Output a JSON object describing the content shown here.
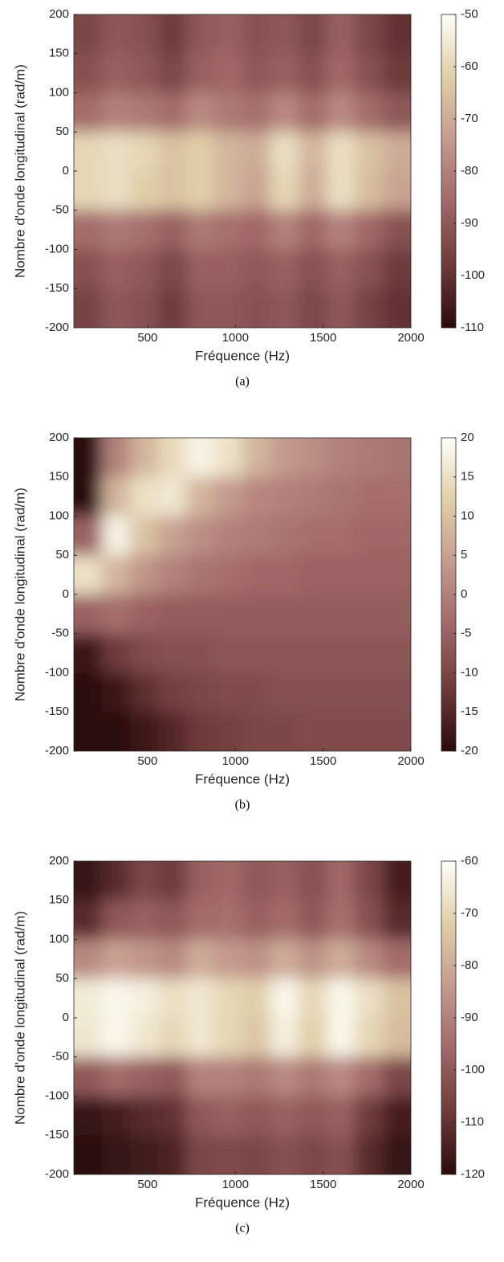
{
  "chart_data": [
    {
      "type": "heatmap",
      "caption": "(a)",
      "xlabel": "Fréquence (Hz)",
      "ylabel": "Nombre d'onde longitudinal (rad/m)",
      "xlim": [
        80,
        2000
      ],
      "ylim": [
        -200,
        200
      ],
      "xticks": [
        500,
        1000,
        1500,
        2000
      ],
      "yticks": [
        -200,
        -150,
        -100,
        -50,
        0,
        50,
        100,
        150,
        200
      ],
      "clim": [
        -110,
        -50
      ],
      "cticks": [
        -110,
        -100,
        -90,
        -80,
        -70,
        -60,
        -50
      ],
      "colormap": [
        "#2b0a0a",
        "#6e3a3a",
        "#a06868",
        "#c49a8e",
        "#e0cfa8",
        "#fffff8"
      ],
      "x": [
        160,
        320,
        480,
        640,
        800,
        960,
        1120,
        1280,
        1440,
        1600,
        1760,
        1920
      ],
      "y": [
        175,
        125,
        75,
        25,
        -25,
        -75,
        -125,
        -175
      ],
      "z": [
        [
          -95,
          -90,
          -92,
          -98,
          -90,
          -88,
          -92,
          -90,
          -95,
          -88,
          -95,
          -100
        ],
        [
          -92,
          -88,
          -90,
          -95,
          -88,
          -86,
          -90,
          -88,
          -92,
          -86,
          -92,
          -98
        ],
        [
          -85,
          -80,
          -82,
          -85,
          -78,
          -82,
          -84,
          -78,
          -85,
          -78,
          -85,
          -90
        ],
        [
          -60,
          -58,
          -60,
          -65,
          -62,
          -68,
          -70,
          -58,
          -68,
          -58,
          -65,
          -70
        ],
        [
          -60,
          -58,
          -62,
          -65,
          -62,
          -68,
          -72,
          -60,
          -70,
          -58,
          -66,
          -72
        ],
        [
          -85,
          -82,
          -84,
          -88,
          -82,
          -84,
          -86,
          -80,
          -86,
          -80,
          -86,
          -92
        ],
        [
          -92,
          -88,
          -90,
          -95,
          -88,
          -88,
          -90,
          -88,
          -92,
          -88,
          -92,
          -98
        ],
        [
          -96,
          -90,
          -92,
          -98,
          -90,
          -90,
          -92,
          -90,
          -95,
          -90,
          -96,
          -100
        ]
      ]
    },
    {
      "type": "heatmap",
      "caption": "(b)",
      "xlabel": "Fréquence (Hz)",
      "ylabel": "Nombre d'onde longitudinal (rad/m)",
      "xlim": [
        80,
        2000
      ],
      "ylim": [
        -200,
        200
      ],
      "xticks": [
        500,
        1000,
        1500,
        2000
      ],
      "yticks": [
        -200,
        -150,
        -100,
        -50,
        0,
        50,
        100,
        150,
        200
      ],
      "clim": [
        -20,
        20
      ],
      "cticks": [
        -20,
        -15,
        -10,
        -5,
        0,
        5,
        10,
        15,
        20
      ],
      "colormap": [
        "#2b0a0a",
        "#6e3a3a",
        "#a06868",
        "#c49a8e",
        "#e0cfa8",
        "#fffff8"
      ],
      "x": [
        160,
        320,
        480,
        640,
        800,
        960,
        1120,
        1280,
        1440,
        1600,
        1760,
        1920
      ],
      "y": [
        175,
        125,
        75,
        25,
        -25,
        -75,
        -125,
        -175
      ],
      "z": [
        [
          -20,
          0,
          8,
          14,
          18,
          15,
          8,
          4,
          2,
          0,
          -1,
          -2
        ],
        [
          -20,
          8,
          15,
          16,
          8,
          4,
          1,
          0,
          -1,
          -2,
          -3,
          -3
        ],
        [
          -5,
          18,
          10,
          5,
          2,
          0,
          -1,
          -2,
          -3,
          -3,
          -4,
          -4
        ],
        [
          15,
          8,
          3,
          0,
          -2,
          -3,
          -4,
          -4,
          -5,
          -5,
          -5,
          -5
        ],
        [
          -5,
          -3,
          -5,
          -6,
          -6,
          -6,
          -6,
          -6,
          -6,
          -6,
          -6,
          -6
        ],
        [
          -18,
          -12,
          -9,
          -8,
          -8,
          -7,
          -7,
          -7,
          -7,
          -7,
          -7,
          -7
        ],
        [
          -20,
          -18,
          -14,
          -11,
          -10,
          -9,
          -9,
          -8,
          -8,
          -8,
          -8,
          -8
        ],
        [
          -20,
          -20,
          -18,
          -15,
          -12,
          -11,
          -10,
          -10,
          -9,
          -9,
          -9,
          -9
        ]
      ]
    },
    {
      "type": "heatmap",
      "caption": "(c)",
      "xlabel": "Fréquence (Hz)",
      "ylabel": "Nombre d'onde longitudinal (rad/m)",
      "xlim": [
        80,
        2000
      ],
      "ylim": [
        -200,
        200
      ],
      "xticks": [
        500,
        1000,
        1500,
        2000
      ],
      "yticks": [
        -200,
        -150,
        -100,
        -50,
        0,
        50,
        100,
        150,
        200
      ],
      "clim": [
        -120,
        -60
      ],
      "cticks": [
        -120,
        -110,
        -100,
        -90,
        -80,
        -70,
        -60
      ],
      "colormap": [
        "#2b0a0a",
        "#6e3a3a",
        "#a06868",
        "#c49a8e",
        "#e0cfa8",
        "#fffff8"
      ],
      "x": [
        160,
        320,
        480,
        640,
        800,
        960,
        1120,
        1280,
        1440,
        1600,
        1760,
        1920
      ],
      "y": [
        175,
        125,
        75,
        25,
        -25,
        -75,
        -125,
        -175
      ],
      "z": [
        [
          -118,
          -112,
          -105,
          -108,
          -98,
          -96,
          -100,
          -98,
          -102,
          -96,
          -105,
          -115
        ],
        [
          -112,
          -100,
          -98,
          -100,
          -95,
          -94,
          -98,
          -95,
          -100,
          -94,
          -102,
          -112
        ],
        [
          -88,
          -82,
          -85,
          -88,
          -80,
          -84,
          -86,
          -80,
          -86,
          -80,
          -88,
          -95
        ],
        [
          -65,
          -62,
          -64,
          -68,
          -66,
          -70,
          -72,
          -62,
          -70,
          -62,
          -68,
          -75
        ],
        [
          -66,
          -62,
          -66,
          -70,
          -66,
          -70,
          -74,
          -64,
          -72,
          -62,
          -70,
          -76
        ],
        [
          -100,
          -95,
          -98,
          -100,
          -90,
          -90,
          -92,
          -88,
          -92,
          -88,
          -95,
          -105
        ],
        [
          -118,
          -115,
          -112,
          -110,
          -100,
          -98,
          -100,
          -98,
          -100,
          -98,
          -108,
          -115
        ],
        [
          -120,
          -118,
          -116,
          -114,
          -105,
          -104,
          -105,
          -102,
          -105,
          -102,
          -112,
          -118
        ]
      ]
    }
  ]
}
